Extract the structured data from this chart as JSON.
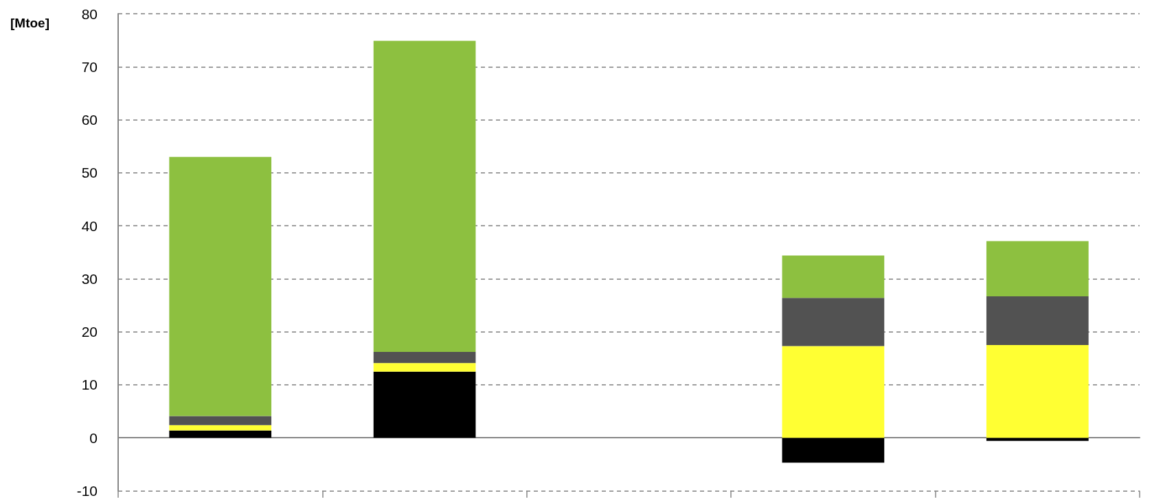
{
  "chart_data": {
    "type": "bar",
    "stacked": true,
    "ylabel": "[Mtoe]",
    "categories": [
      null,
      null,
      null,
      null,
      null
    ],
    "series": [
      {
        "color": "#000000",
        "values": [
          1.4,
          12.5,
          null,
          -4.7,
          -0.6
        ]
      },
      {
        "color": "#ffff33",
        "values": [
          1.0,
          1.6,
          null,
          17.3,
          17.5
        ]
      },
      {
        "color": "#525252",
        "values": [
          1.7,
          2.1,
          null,
          9.1,
          9.2
        ]
      },
      {
        "color": "#8dc040",
        "values": [
          48.9,
          58.7,
          null,
          8.0,
          10.4
        ]
      }
    ],
    "ylim": [
      -10,
      80
    ],
    "yticks": [
      -10,
      0,
      10,
      20,
      30,
      40,
      50,
      60,
      70,
      80
    ],
    "grid": "y"
  }
}
